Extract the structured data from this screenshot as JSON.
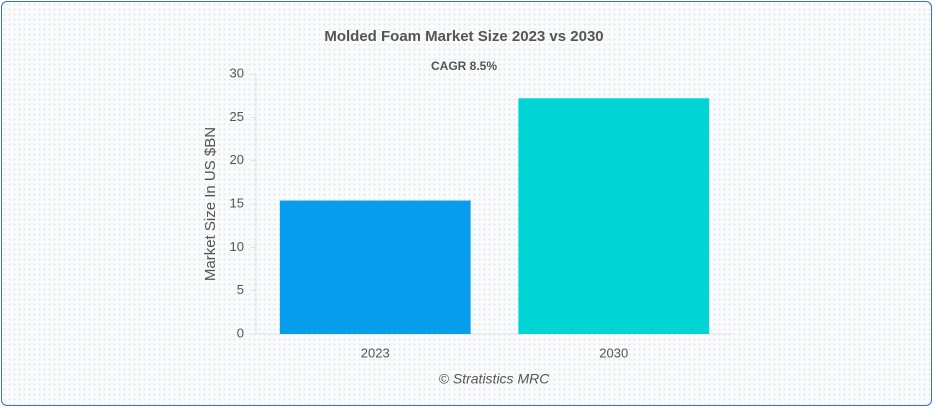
{
  "chart_data": {
    "type": "bar",
    "title": "Molded Foam Market Size 2023 vs 2030",
    "subtitle": "CAGR 8.5%",
    "y_label": "Market Size In US $BN",
    "source": "© Stratistics MRC",
    "categories": [
      "2023",
      "2030"
    ],
    "values": [
      15.4,
      27.2
    ],
    "colors": [
      "#069ded",
      "#00d4d4"
    ],
    "ylim": [
      0,
      30
    ],
    "yticks": [
      0,
      5,
      10,
      15,
      20,
      25,
      30
    ],
    "grid": false
  }
}
